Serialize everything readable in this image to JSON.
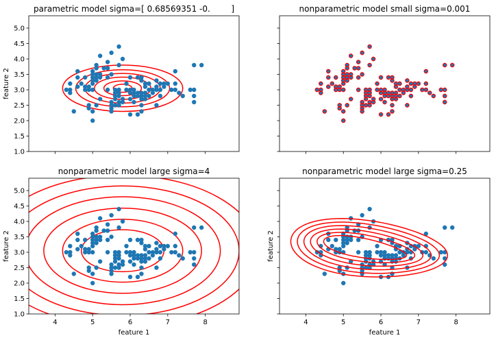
{
  "chart_data": [
    {
      "type": "scatter",
      "title": "parametric model sigma=[ 0.68569351 -0.        ]",
      "xlabel": "",
      "ylabel": "feature 2",
      "xlim": [
        3.3,
        8.9
      ],
      "ylim": [
        1.0,
        5.4
      ],
      "xticks": [],
      "yticks": [
        1.0,
        1.5,
        2.0,
        2.5,
        3.0,
        3.5,
        4.0,
        4.5,
        5.0
      ],
      "contours": {
        "type": "ellipses",
        "center": [
          5.8,
          3.05
        ],
        "rx": [
          0.25,
          0.5,
          0.75,
          1.0,
          1.25,
          1.6
        ],
        "ry": [
          0.13,
          0.24,
          0.36,
          0.48,
          0.6,
          0.75
        ]
      },
      "overlay_points": false
    },
    {
      "type": "scatter",
      "title": "nonparametric model small sigma=0.001",
      "xlabel": "",
      "ylabel": "",
      "xlim": [
        3.3,
        8.9
      ],
      "ylim": [
        1.0,
        5.4
      ],
      "xticks": [],
      "yticks": [],
      "contours": null,
      "overlay_points": true
    },
    {
      "type": "scatter",
      "title": "nonparametric model large sigma=4",
      "xlabel": "feature 1",
      "ylabel": "feature 2",
      "xlim": [
        3.3,
        8.9
      ],
      "ylim": [
        1.0,
        5.4
      ],
      "xticks": [
        4,
        5,
        6,
        7,
        8
      ],
      "yticks": [
        1.0,
        1.5,
        2.0,
        2.5,
        3.0,
        3.5,
        4.0,
        4.5,
        5.0
      ],
      "contours": {
        "type": "ellipses",
        "center": [
          5.8,
          3.05
        ],
        "rx": [
          1.1,
          1.6,
          2.1,
          2.6,
          3.1,
          3.6
        ],
        "ry": [
          0.68,
          1.02,
          1.38,
          1.75,
          2.1,
          2.45
        ]
      },
      "overlay_points": false
    },
    {
      "type": "scatter",
      "title": "nonparametric model large sigma=0.25",
      "xlabel": "feature 1",
      "ylabel": "feature 2",
      "xlim": [
        3.3,
        8.9
      ],
      "ylim": [
        1.0,
        5.4
      ],
      "xticks": [
        4,
        5,
        6,
        7,
        8
      ],
      "yticks": [],
      "contours": {
        "type": "blobs",
        "levels": 6
      },
      "overlay_points": false
    }
  ],
  "points": [
    [
      4.3,
      3.0
    ],
    [
      4.4,
      2.9
    ],
    [
      4.4,
      3.0
    ],
    [
      4.4,
      3.2
    ],
    [
      4.5,
      2.3
    ],
    [
      4.6,
      3.1
    ],
    [
      4.6,
      3.4
    ],
    [
      4.6,
      3.6
    ],
    [
      4.7,
      3.2
    ],
    [
      4.8,
      3.4
    ],
    [
      4.8,
      3.0
    ],
    [
      4.8,
      3.1
    ],
    [
      4.9,
      3.0
    ],
    [
      4.9,
      3.1
    ],
    [
      4.9,
      2.4
    ],
    [
      4.9,
      2.5
    ],
    [
      5.0,
      3.6
    ],
    [
      5.0,
      3.4
    ],
    [
      5.0,
      3.0
    ],
    [
      5.0,
      3.3
    ],
    [
      5.0,
      2.0
    ],
    [
      5.0,
      2.3
    ],
    [
      5.0,
      3.5
    ],
    [
      5.0,
      3.2
    ],
    [
      5.1,
      3.5
    ],
    [
      5.1,
      3.8
    ],
    [
      5.1,
      3.7
    ],
    [
      5.1,
      3.3
    ],
    [
      5.1,
      3.4
    ],
    [
      5.1,
      2.5
    ],
    [
      5.2,
      3.5
    ],
    [
      5.2,
      3.4
    ],
    [
      5.2,
      4.1
    ],
    [
      5.2,
      2.7
    ],
    [
      5.3,
      3.7
    ],
    [
      5.4,
      3.9
    ],
    [
      5.4,
      3.4
    ],
    [
      5.4,
      3.7
    ],
    [
      5.4,
      3.0
    ],
    [
      5.5,
      4.2
    ],
    [
      5.5,
      3.5
    ],
    [
      5.5,
      2.3
    ],
    [
      5.5,
      2.4
    ],
    [
      5.5,
      2.6
    ],
    [
      5.5,
      2.5
    ],
    [
      5.6,
      2.9
    ],
    [
      5.6,
      3.0
    ],
    [
      5.6,
      2.5
    ],
    [
      5.6,
      2.7
    ],
    [
      5.6,
      2.8
    ],
    [
      5.7,
      4.4
    ],
    [
      5.7,
      3.8
    ],
    [
      5.7,
      2.8
    ],
    [
      5.7,
      2.6
    ],
    [
      5.7,
      3.0
    ],
    [
      5.7,
      2.9
    ],
    [
      5.7,
      2.5
    ],
    [
      5.8,
      4.0
    ],
    [
      5.8,
      2.7
    ],
    [
      5.8,
      2.6
    ],
    [
      5.9,
      3.0
    ],
    [
      5.9,
      3.2
    ],
    [
      6.0,
      2.2
    ],
    [
      6.0,
      2.9
    ],
    [
      6.0,
      2.7
    ],
    [
      6.0,
      3.4
    ],
    [
      6.0,
      3.0
    ],
    [
      6.1,
      2.8
    ],
    [
      6.1,
      2.9
    ],
    [
      6.1,
      3.0
    ],
    [
      6.1,
      2.6
    ],
    [
      6.2,
      2.2
    ],
    [
      6.2,
      2.9
    ],
    [
      6.2,
      2.8
    ],
    [
      6.2,
      3.4
    ],
    [
      6.3,
      3.3
    ],
    [
      6.3,
      2.5
    ],
    [
      6.3,
      2.3
    ],
    [
      6.3,
      2.9
    ],
    [
      6.3,
      2.8
    ],
    [
      6.3,
      2.7
    ],
    [
      6.3,
      3.4
    ],
    [
      6.4,
      3.2
    ],
    [
      6.4,
      2.9
    ],
    [
      6.4,
      2.7
    ],
    [
      6.4,
      2.8
    ],
    [
      6.4,
      3.1
    ],
    [
      6.5,
      2.8
    ],
    [
      6.5,
      3.0
    ],
    [
      6.5,
      3.2
    ],
    [
      6.6,
      2.9
    ],
    [
      6.6,
      3.0
    ],
    [
      6.7,
      3.1
    ],
    [
      6.7,
      3.0
    ],
    [
      6.7,
      2.5
    ],
    [
      6.7,
      3.3
    ],
    [
      6.8,
      2.8
    ],
    [
      6.8,
      3.0
    ],
    [
      6.8,
      3.2
    ],
    [
      6.9,
      3.1
    ],
    [
      6.9,
      3.2
    ],
    [
      7.0,
      3.2
    ],
    [
      7.1,
      3.0
    ],
    [
      7.2,
      3.6
    ],
    [
      7.2,
      3.2
    ],
    [
      7.2,
      3.0
    ],
    [
      7.3,
      2.9
    ],
    [
      7.4,
      2.8
    ],
    [
      7.6,
      3.0
    ],
    [
      7.7,
      3.8
    ],
    [
      7.7,
      2.6
    ],
    [
      7.7,
      2.8
    ],
    [
      7.7,
      3.0
    ],
    [
      7.9,
      3.8
    ]
  ],
  "colors": {
    "points": "#1f77b4",
    "contour": "#ff0000",
    "axes": "#000000",
    "overlay": "#ff0000"
  }
}
